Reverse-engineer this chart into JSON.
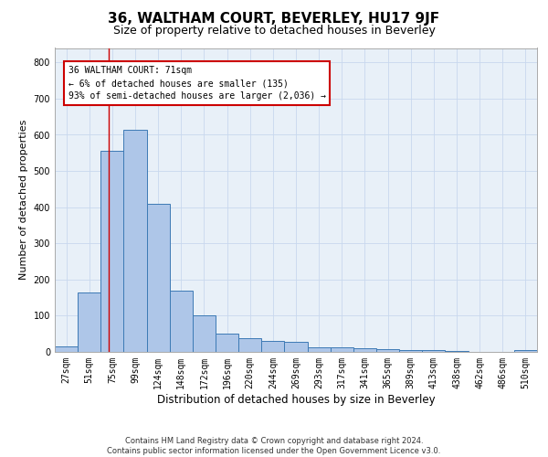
{
  "title": "36, WALTHAM COURT, BEVERLEY, HU17 9JF",
  "subtitle": "Size of property relative to detached houses in Beverley",
  "xlabel": "Distribution of detached houses by size in Beverley",
  "ylabel": "Number of detached properties",
  "categories": [
    "27sqm",
    "51sqm",
    "75sqm",
    "99sqm",
    "124sqm",
    "148sqm",
    "172sqm",
    "196sqm",
    "220sqm",
    "244sqm",
    "269sqm",
    "293sqm",
    "317sqm",
    "341sqm",
    "365sqm",
    "389sqm",
    "413sqm",
    "438sqm",
    "462sqm",
    "486sqm",
    "510sqm"
  ],
  "values": [
    15,
    165,
    555,
    615,
    410,
    170,
    100,
    50,
    38,
    30,
    28,
    13,
    12,
    9,
    7,
    5,
    4,
    3,
    1,
    1,
    5
  ],
  "bar_color": "#aec6e8",
  "bar_edge_color": "#3d7ab5",
  "bar_edge_width": 0.7,
  "grid_color": "#c8d8ee",
  "background_color": "#e8f0f8",
  "property_line_x": 1.83,
  "property_line_color": "#cc0000",
  "annotation_text": "36 WALTHAM COURT: 71sqm\n← 6% of detached houses are smaller (135)\n93% of semi-detached houses are larger (2,036) →",
  "annotation_box_color": "#cc0000",
  "annotation_fontsize": 7.0,
  "ylim": [
    0,
    840
  ],
  "yticks": [
    0,
    100,
    200,
    300,
    400,
    500,
    600,
    700,
    800
  ],
  "footer_text": "Contains HM Land Registry data © Crown copyright and database right 2024.\nContains public sector information licensed under the Open Government Licence v3.0.",
  "title_fontsize": 11,
  "subtitle_fontsize": 9,
  "xlabel_fontsize": 8.5,
  "ylabel_fontsize": 8,
  "tick_fontsize": 7,
  "footer_fontsize": 6
}
